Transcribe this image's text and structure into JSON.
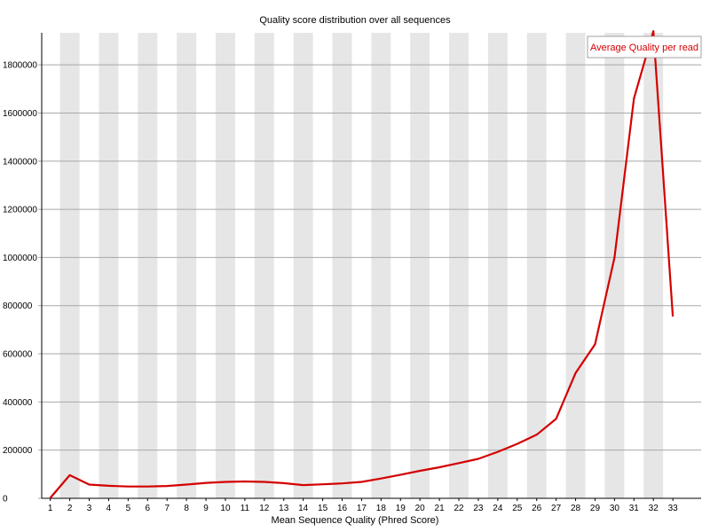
{
  "chart_data": {
    "type": "line",
    "title": "Quality score distribution over all sequences",
    "xlabel": "Mean Sequence Quality (Phred Score)",
    "ylabel": "",
    "legend_label": "Average Quality per read",
    "legend_position": "top-right",
    "x": [
      1,
      2,
      3,
      4,
      5,
      6,
      7,
      8,
      9,
      10,
      11,
      12,
      13,
      14,
      15,
      16,
      17,
      18,
      19,
      20,
      21,
      22,
      23,
      24,
      25,
      26,
      27,
      28,
      29,
      30,
      31,
      32,
      33
    ],
    "series": [
      {
        "name": "Average Quality per read",
        "values": [
          2000,
          96000,
          57000,
          52000,
          49000,
          49000,
          51000,
          57000,
          64000,
          68000,
          70000,
          68000,
          63000,
          55000,
          58000,
          62000,
          68000,
          82000,
          98000,
          114000,
          129000,
          146000,
          164000,
          193000,
          226000,
          264000,
          330000,
          520000,
          640000,
          1000000,
          1660000,
          1940000,
          755000
        ]
      }
    ],
    "yticks": [
      0,
      200000,
      400000,
      600000,
      800000,
      1000000,
      1200000,
      1400000,
      1600000,
      1800000
    ],
    "ylim": [
      0,
      1933000
    ],
    "grid": "horizontal",
    "background_bands": "alternating vertical stripes on even x categories",
    "colors": {
      "line": "#d40000",
      "legend_text": "#d40000",
      "band": "#e6e6e6",
      "gridline": "#a8a8a8",
      "axis": "#000000",
      "legend_border": "#a0a0a0",
      "legend_fill": "#ffffff"
    }
  }
}
